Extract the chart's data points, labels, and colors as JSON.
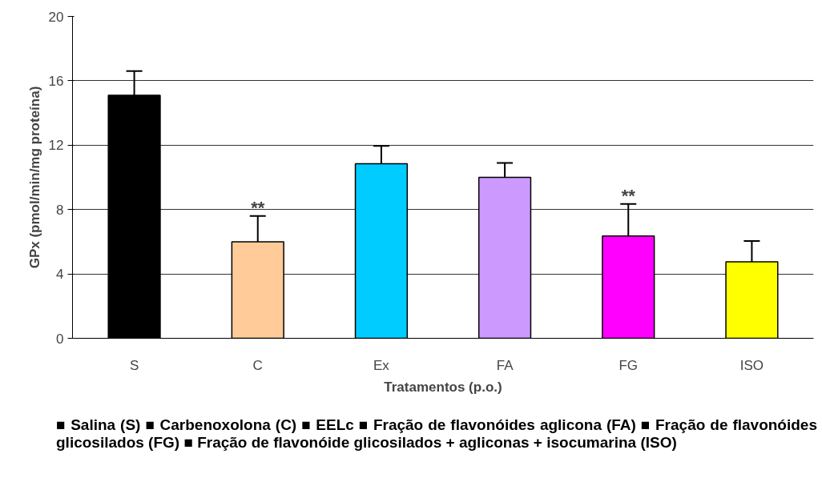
{
  "chart_data": {
    "type": "bar",
    "xlabel": "Tratamentos (p.o.)",
    "ylabel": "GPx (pmol/min/mg proteína)",
    "categories": [
      "S",
      "C",
      "Ex",
      "FA",
      "FG",
      "ISO"
    ],
    "values": [
      15.1,
      6.0,
      10.85,
      10.0,
      6.35,
      4.75
    ],
    "errors": [
      1.5,
      1.6,
      1.1,
      0.9,
      2.0,
      1.3
    ],
    "colors": [
      "#000000",
      "#ffcc99",
      "#00ccff",
      "#cc99ff",
      "#ff00ff",
      "#ffff00"
    ],
    "ylim": [
      0,
      20
    ],
    "yticks": [
      0,
      4,
      8,
      12,
      16,
      20
    ],
    "grid": "y",
    "annotations": [
      {
        "text": "**",
        "x": "C",
        "y": 7.6
      },
      {
        "text": "**",
        "x": "FG",
        "y": 8.35
      },
      "■ Salina (S) ■ Carbenoxolona (C) ■ EELc ■ Fração de flavonóides aglicona (FA) ■ Fração de flavonóides glicosilados (FG) ■ Fração de flavonóide glicosilados + agliconas + isocumarina (ISO)"
    ]
  }
}
